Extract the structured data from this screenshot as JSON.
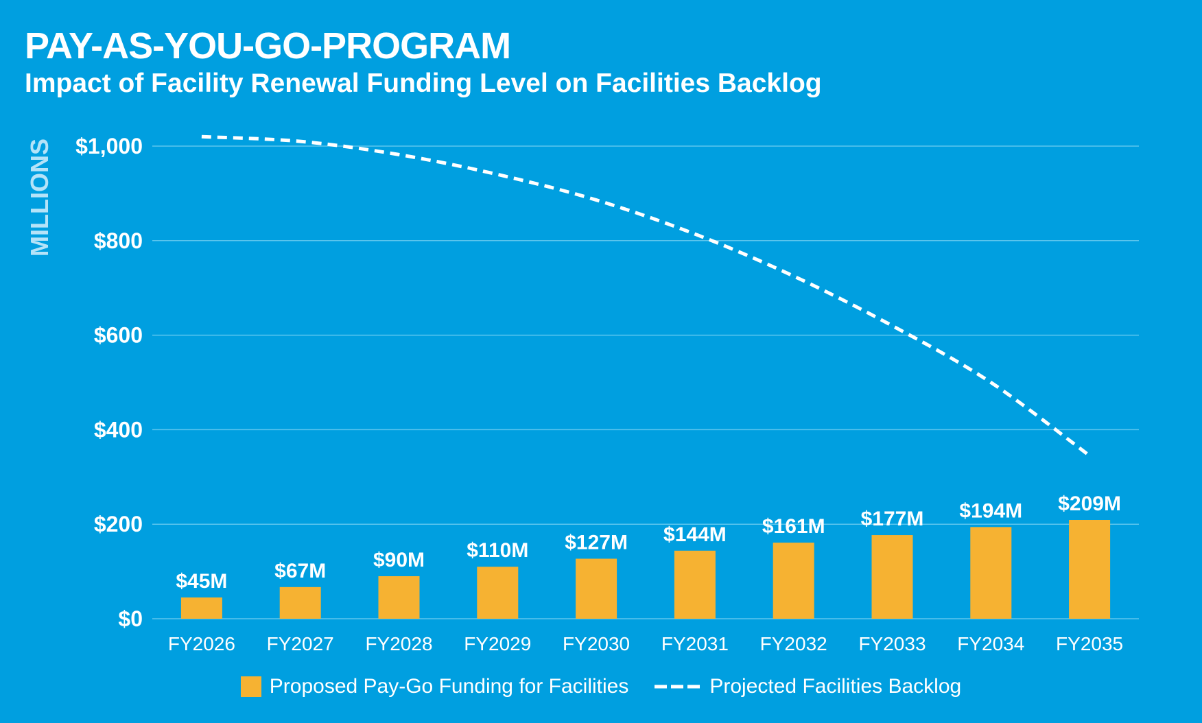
{
  "header": {
    "title": "PAY-AS-YOU-GO-PROGRAM",
    "subtitle": "Impact of Facility Renewal Funding Level on Facilities Backlog"
  },
  "legend": {
    "bar_label": "Proposed Pay-Go Funding for Facilities",
    "line_label": "Projected Facilities Backlog"
  },
  "colors": {
    "background": "#009fe0",
    "bar": "#f6b232",
    "line": "#ffffff",
    "grid": "#5ec6ee",
    "axis_label": "#b5e3f8"
  },
  "chart_data": {
    "type": "bar",
    "title": "PAY-AS-YOU-GO-PROGRAM",
    "subtitle": "Impact of Facility Renewal Funding Level on Facilities Backlog",
    "xlabel": "",
    "ylabel": "MILLIONS",
    "ylim": [
      0,
      1000
    ],
    "yticks": [
      0,
      200,
      400,
      600,
      800,
      1000
    ],
    "ytick_labels": [
      "$0",
      "$200",
      "$400",
      "$600",
      "$800",
      "$1,000"
    ],
    "grid": true,
    "legend_position": "bottom",
    "categories": [
      "FY2026",
      "FY2027",
      "FY2028",
      "FY2029",
      "FY2030",
      "FY2031",
      "FY2032",
      "FY2033",
      "FY2034",
      "FY2035"
    ],
    "series": [
      {
        "name": "Proposed Pay-Go Funding for Facilities",
        "type": "bar",
        "values": [
          45,
          67,
          90,
          110,
          127,
          144,
          161,
          177,
          194,
          209
        ],
        "data_labels": [
          "$45M",
          "$67M",
          "$90M",
          "$110M",
          "$127M",
          "$144M",
          "$161M",
          "$177M",
          "$194M",
          "$209M"
        ]
      },
      {
        "name": "Projected Facilities Backlog",
        "type": "line",
        "style": "dashed",
        "values": [
          1020,
          1010,
          982,
          940,
          886,
          814,
          725,
          620,
          500,
          345
        ]
      }
    ]
  }
}
